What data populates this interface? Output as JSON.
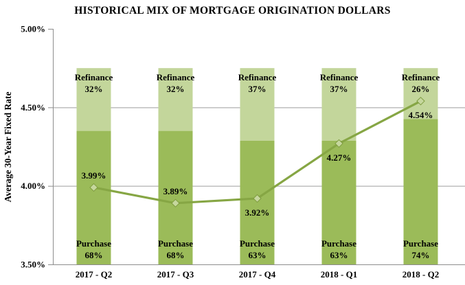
{
  "title": "HISTORICAL MIX OF MORTGAGE ORIGINATION DOLLARS",
  "chart_data": {
    "type": "combo",
    "subtypes": [
      "stacked-bar",
      "line"
    ],
    "title": "HISTORICAL MIX OF MORTGAGE ORIGINATION DOLLARS",
    "categories": [
      "2017 - Q2",
      "2017 - Q3",
      "2017 - Q4",
      "2018 - Q1",
      "2018 - Q2"
    ],
    "bar_series": [
      {
        "name": "Purchase",
        "values": [
          68,
          68,
          63,
          63,
          74
        ],
        "display": [
          "68%",
          "68%",
          "63%",
          "63%",
          "74%"
        ],
        "color": "#9BBB59"
      },
      {
        "name": "Refinance",
        "values": [
          32,
          32,
          37,
          37,
          26
        ],
        "display": [
          "32%",
          "32%",
          "37%",
          "37%",
          "26%"
        ],
        "color": "#C3D69B"
      }
    ],
    "bar_axis": {
      "base_value": 3.5,
      "top_value": 4.75
    },
    "line_series": {
      "name": "Average 30-Year Fixed Rate",
      "values": [
        3.99,
        3.89,
        3.92,
        4.27,
        4.54
      ],
      "display": [
        "3.99%",
        "3.89%",
        "3.92%",
        "4.27%",
        "4.54%"
      ],
      "label_side": [
        "above",
        "above",
        "below",
        "below",
        "below"
      ],
      "color": "#86A644",
      "marker": "diamond",
      "marker_fill": "#C6D79E",
      "marker_stroke": "#7E9C3F"
    },
    "y_axis": {
      "label": "Average 30-Year Fixed Rate",
      "min": 3.5,
      "max": 5.0,
      "ticks": [
        {
          "label": "5.00%",
          "value": 5.0
        },
        {
          "label": "4.50%",
          "value": 4.5
        },
        {
          "label": "4.00%",
          "value": 4.0
        },
        {
          "label": "3.50%",
          "value": 3.5
        }
      ],
      "gridline_values": [
        4.5,
        4.0
      ]
    },
    "grid": "horizontal-major",
    "legend": "none",
    "axis_color": "#8C8C8C",
    "gridline_color": "#9E9E9E"
  }
}
